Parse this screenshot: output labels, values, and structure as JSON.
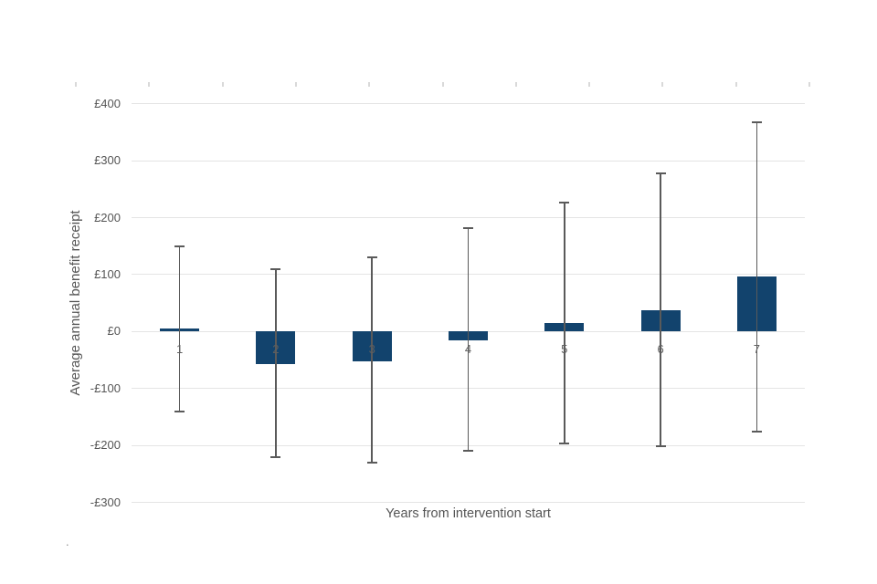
{
  "chart_data": {
    "type": "bar",
    "title": "",
    "xlabel": "Years from intervention start",
    "ylabel": "Average annual benefit receipt",
    "categories": [
      "1",
      "2",
      "3",
      "4",
      "5",
      "6",
      "7"
    ],
    "series": [
      {
        "name": "Average annual benefit receipt",
        "values": [
          6,
          -57,
          -52,
          -16,
          15,
          38,
          96
        ],
        "error_upper": [
          150,
          110,
          130,
          182,
          226,
          277,
          368
        ],
        "error_lower": [
          -140,
          -220,
          -230,
          -210,
          -197,
          -202,
          -175
        ]
      }
    ],
    "ylim": [
      -300,
      400
    ],
    "ytick_step": 100,
    "yticks": [
      {
        "value": 400,
        "label": "£400"
      },
      {
        "value": 300,
        "label": "£300"
      },
      {
        "value": 200,
        "label": "£200"
      },
      {
        "value": 100,
        "label": "£100"
      },
      {
        "value": 0,
        "label": "£0"
      },
      {
        "value": -100,
        "label": "-£100"
      },
      {
        "value": -200,
        "label": "-£200"
      },
      {
        "value": -300,
        "label": "-£300"
      }
    ],
    "grid": true,
    "legend": "none",
    "top_axis_tick_count": 11,
    "colors": {
      "bar": "#12436d",
      "error_bar": "#5a5a5a",
      "gridline": "#e4e4e4",
      "axis_text": "#555555",
      "category_text": "#5f5f5f",
      "top_tick": "#d9d9d9"
    }
  },
  "stray_mark": "."
}
